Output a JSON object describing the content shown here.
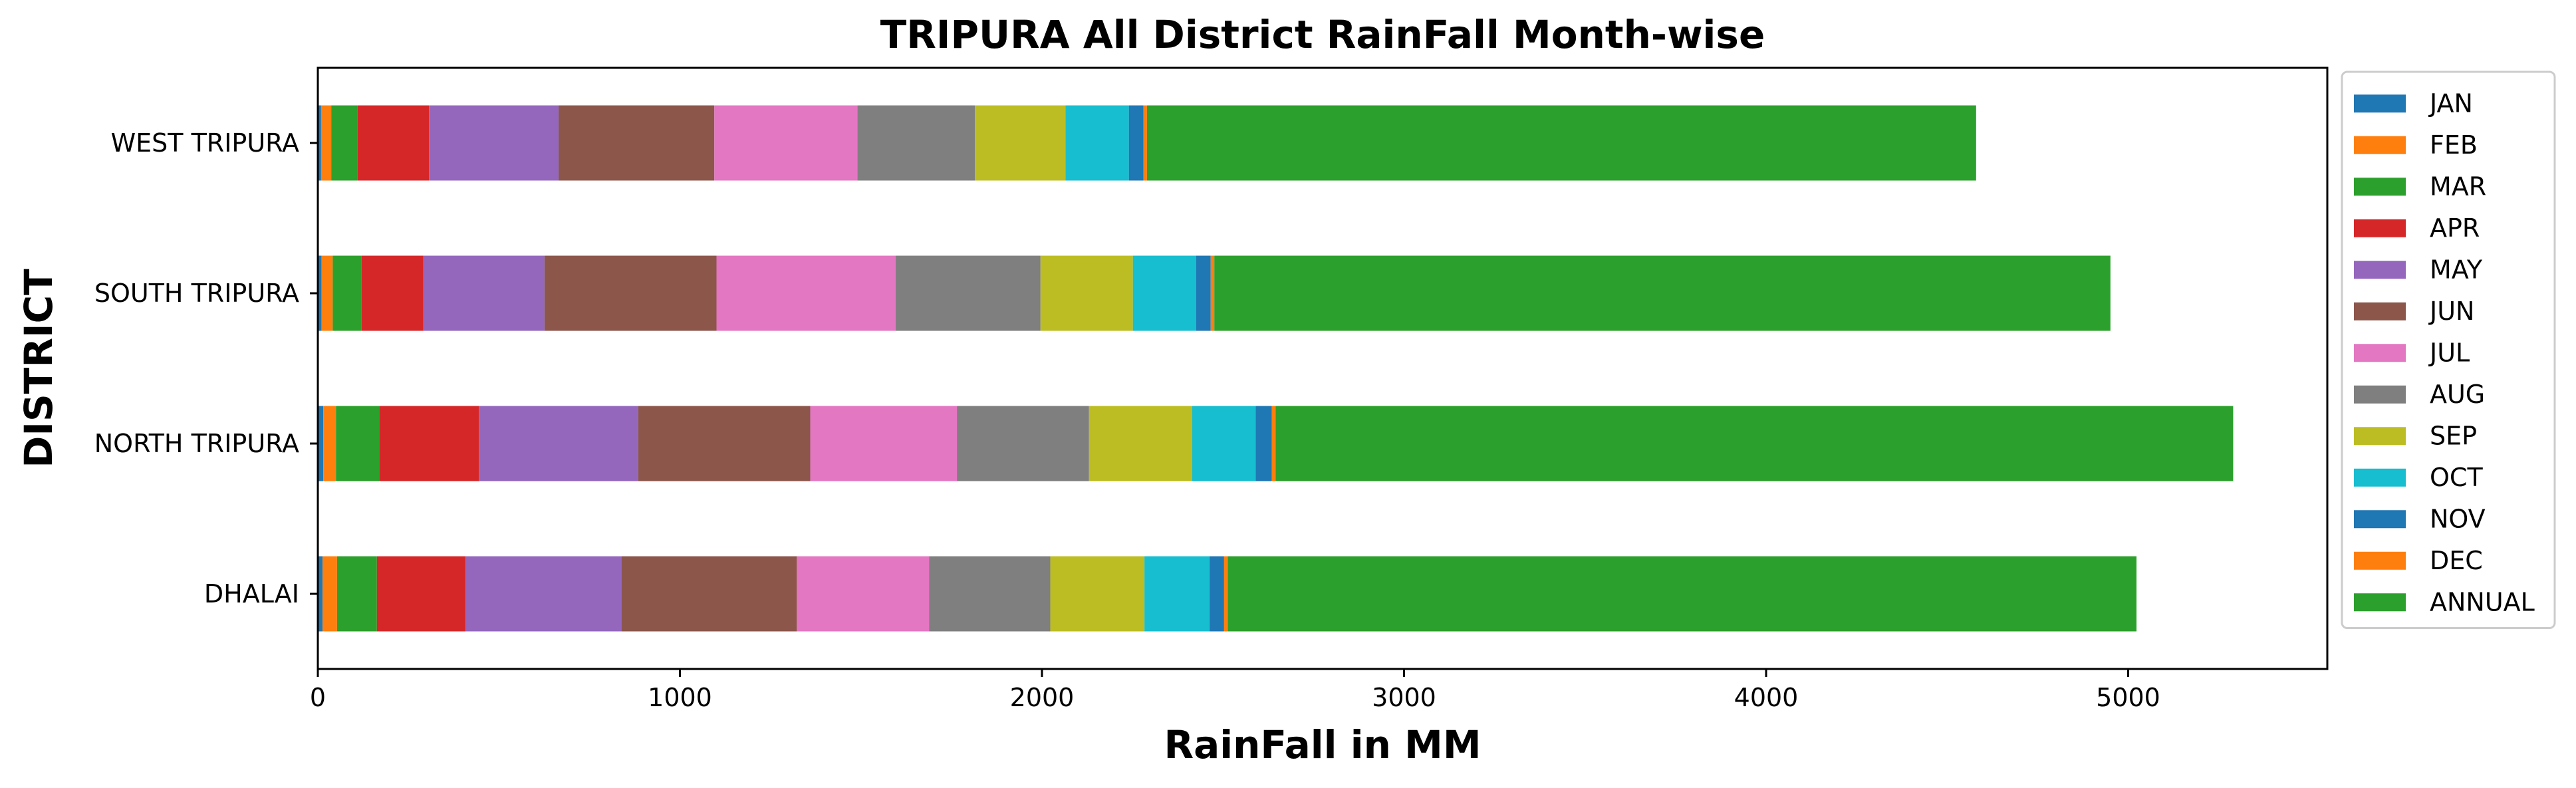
{
  "chart_data": {
    "type": "bar",
    "orientation": "horizontal",
    "stacked": true,
    "title": "TRIPURA All District RainFall Month-wise",
    "xlabel": "RainFall in MM",
    "ylabel": "DISTRICT",
    "xlim": [
      0,
      5550
    ],
    "xticks": [
      0,
      1000,
      2000,
      3000,
      4000,
      5000
    ],
    "categories": [
      "DHALAI",
      "NORTH TRIPURA",
      "SOUTH TRIPURA",
      "WEST TRIPURA"
    ],
    "grid": false,
    "legend_position": "right-outside",
    "series": [
      {
        "name": "JAN",
        "color": "#1f77b4",
        "values": [
          13,
          15,
          10,
          9
        ]
      },
      {
        "name": "FEB",
        "color": "#ff7f0e",
        "values": [
          40,
          35,
          31,
          28
        ]
      },
      {
        "name": "MAR",
        "color": "#2ca02c",
        "values": [
          110,
          120,
          80,
          73
        ]
      },
      {
        "name": "APR",
        "color": "#d62728",
        "values": [
          245,
          275,
          170,
          197
        ]
      },
      {
        "name": "MAY",
        "color": "#9467bd",
        "values": [
          430,
          440,
          335,
          358
        ]
      },
      {
        "name": "JUN",
        "color": "#8c564b",
        "values": [
          485,
          475,
          475,
          430
        ]
      },
      {
        "name": "JUL",
        "color": "#e377c2",
        "values": [
          365,
          405,
          495,
          395
        ]
      },
      {
        "name": "AUG",
        "color": "#7f7f7f",
        "values": [
          335,
          365,
          400,
          325
        ]
      },
      {
        "name": "SEP",
        "color": "#bcbd22",
        "values": [
          260,
          285,
          255,
          250
        ]
      },
      {
        "name": "OCT",
        "color": "#17becf",
        "values": [
          180,
          175,
          175,
          175
        ]
      },
      {
        "name": "NOV",
        "color": "#1f77b4",
        "values": [
          40,
          45,
          40,
          40
        ]
      },
      {
        "name": "DEC",
        "color": "#ff7f0e",
        "values": [
          10,
          10,
          10,
          10
        ]
      },
      {
        "name": "ANNUAL",
        "color": "#2ca02c",
        "values": [
          2510,
          2645,
          2475,
          2290
        ]
      }
    ]
  }
}
